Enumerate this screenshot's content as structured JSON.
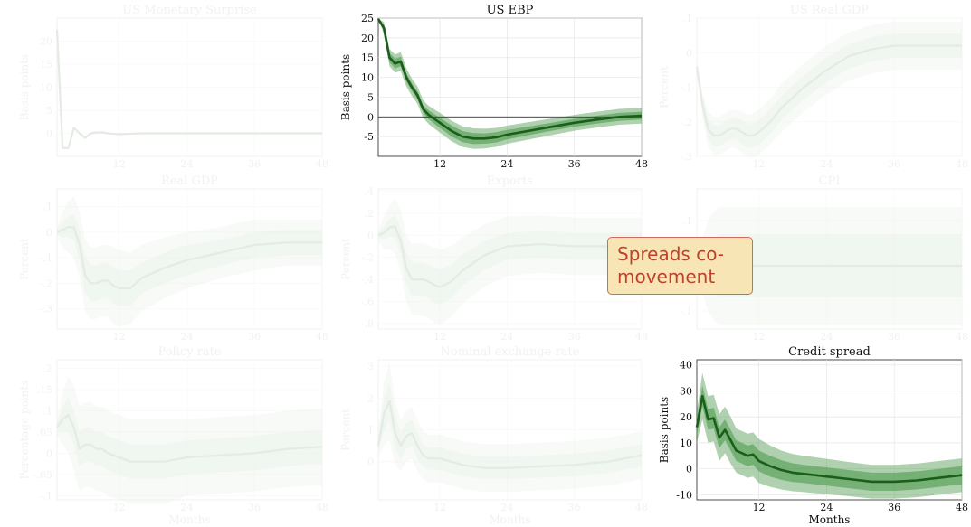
{
  "x_axis": {
    "ticks": [
      12,
      24,
      36,
      48
    ],
    "label": "Months"
  },
  "highlight_color": "#1a5e1a",
  "faded_color": "#d8e6d5",
  "band_color": "#4f9a4f",
  "annotation": {
    "text": "Spreads co-movement"
  },
  "chart_data": [
    {
      "type": "line",
      "title": "US Monetary Surprise",
      "ylabel": "Basis points",
      "xlabel": "",
      "highlighted": false,
      "ylim": [
        -5,
        25
      ],
      "yticks": [
        0,
        5,
        10,
        15,
        20
      ],
      "zero_line": false,
      "x": [
        1,
        2,
        3,
        4,
        5,
        6,
        7,
        8,
        9,
        10,
        12,
        16,
        20,
        24,
        30,
        36,
        42,
        48
      ],
      "values": [
        22.5,
        -3.2,
        -3.2,
        1.2,
        0,
        -1,
        0,
        0.2,
        0.2,
        0,
        -0.2,
        0,
        0,
        0,
        0,
        0,
        0,
        0
      ],
      "inner_band": [
        0,
        0,
        0,
        0,
        0,
        0,
        0,
        0,
        0,
        0,
        0,
        0,
        0,
        0,
        0,
        0,
        0,
        0
      ],
      "outer_band": [
        0,
        0,
        0,
        0,
        0,
        0,
        0,
        0,
        0,
        0,
        0,
        0,
        0,
        0,
        0,
        0,
        0,
        0
      ]
    },
    {
      "type": "line",
      "title": "US EBP",
      "ylabel": "Basis points",
      "xlabel": "",
      "highlighted": true,
      "ylim": [
        -10,
        25
      ],
      "yticks": [
        -5,
        0,
        5,
        10,
        15,
        20,
        25
      ],
      "zero_line": true,
      "x": [
        1,
        2,
        3,
        4,
        5,
        6,
        7,
        8,
        9,
        10,
        11,
        12,
        14,
        16,
        18,
        20,
        22,
        24,
        28,
        32,
        36,
        40,
        44,
        48
      ],
      "values": [
        24.8,
        22.5,
        15,
        13.5,
        14,
        10,
        7.5,
        5.5,
        2,
        0.5,
        -0.5,
        -1.5,
        -3.5,
        -5,
        -5.5,
        -5.5,
        -5.2,
        -4.5,
        -3.5,
        -2.5,
        -1.5,
        -0.7,
        0,
        0.3
      ],
      "inner_band": [
        0,
        0.8,
        1.2,
        1.2,
        1.2,
        1.1,
        1,
        1,
        1,
        1.1,
        1.2,
        1.3,
        1.4,
        1.4,
        1.4,
        1.3,
        1.3,
        1.2,
        1.1,
        1,
        1,
        1,
        1,
        1
      ],
      "outer_band": [
        0,
        1.5,
        2.2,
        2.3,
        2.4,
        2.3,
        2.2,
        2.2,
        2.2,
        2.3,
        2.4,
        2.5,
        2.6,
        2.6,
        2.6,
        2.5,
        2.4,
        2.3,
        2.2,
        2.1,
        2,
        2,
        2,
        2
      ]
    },
    {
      "type": "line",
      "title": "US Real GDP",
      "ylabel": "Percent",
      "xlabel": "",
      "highlighted": false,
      "ylim": [
        -0.3,
        0.1
      ],
      "yticks": [
        -0.3,
        -0.2,
        -0.1,
        0,
        0.1
      ],
      "zero_line": false,
      "x": [
        1,
        2,
        3,
        4,
        5,
        6,
        7,
        8,
        9,
        10,
        11,
        12,
        14,
        16,
        20,
        24,
        28,
        32,
        36,
        40,
        44,
        48
      ],
      "values": [
        -0.04,
        -0.15,
        -0.22,
        -0.24,
        -0.24,
        -0.23,
        -0.22,
        -0.22,
        -0.23,
        -0.24,
        -0.24,
        -0.23,
        -0.2,
        -0.16,
        -0.1,
        -0.05,
        -0.01,
        0.01,
        0.02,
        0.02,
        0.02,
        0.02
      ],
      "inner_band": [
        0.005,
        0.02,
        0.03,
        0.03,
        0.03,
        0.03,
        0.03,
        0.03,
        0.035,
        0.035,
        0.035,
        0.035,
        0.035,
        0.035,
        0.035,
        0.035,
        0.035,
        0.035,
        0.035,
        0.035,
        0.035,
        0.035
      ],
      "outer_band": [
        0.01,
        0.035,
        0.05,
        0.055,
        0.055,
        0.055,
        0.055,
        0.055,
        0.06,
        0.06,
        0.065,
        0.065,
        0.065,
        0.07,
        0.07,
        0.07,
        0.07,
        0.07,
        0.07,
        0.07,
        0.07,
        0.07
      ]
    },
    {
      "type": "line",
      "title": "Real GDP",
      "ylabel": "Percent",
      "xlabel": "",
      "highlighted": false,
      "ylim": [
        -0.38,
        0.17
      ],
      "yticks": [
        -0.3,
        -0.2,
        -0.1,
        0,
        0.1
      ],
      "zero_line": false,
      "x": [
        1,
        2,
        3,
        4,
        5,
        6,
        7,
        8,
        9,
        10,
        11,
        12,
        14,
        16,
        20,
        24,
        30,
        36,
        42,
        48
      ],
      "values": [
        0,
        0.01,
        0.02,
        0.02,
        -0.05,
        -0.17,
        -0.2,
        -0.2,
        -0.19,
        -0.19,
        -0.21,
        -0.22,
        -0.22,
        -0.18,
        -0.14,
        -0.11,
        -0.08,
        -0.05,
        -0.04,
        -0.04
      ],
      "inner_band": [
        0.01,
        0.03,
        0.04,
        0.05,
        0.06,
        0.07,
        0.07,
        0.07,
        0.07,
        0.07,
        0.07,
        0.07,
        0.07,
        0.06,
        0.06,
        0.06,
        0.05,
        0.05,
        0.05,
        0.05
      ],
      "outer_band": [
        0.02,
        0.07,
        0.1,
        0.12,
        0.13,
        0.14,
        0.14,
        0.14,
        0.14,
        0.14,
        0.15,
        0.15,
        0.14,
        0.13,
        0.12,
        0.11,
        0.1,
        0.1,
        0.09,
        0.09
      ]
    },
    {
      "type": "line",
      "title": "Exports",
      "ylabel": "Percent",
      "xlabel": "",
      "highlighted": false,
      "ylim": [
        -0.85,
        0.42
      ],
      "yticks": [
        -0.8,
        -0.6,
        -0.4,
        -0.2,
        0,
        0.2,
        0.4
      ],
      "zero_line": false,
      "x": [
        1,
        2,
        3,
        4,
        5,
        6,
        7,
        8,
        9,
        10,
        11,
        12,
        14,
        16,
        20,
        24,
        30,
        36,
        42,
        48
      ],
      "values": [
        0,
        0.02,
        0.07,
        0.08,
        -0.05,
        -0.3,
        -0.4,
        -0.4,
        -0.4,
        -0.42,
        -0.45,
        -0.47,
        -0.42,
        -0.32,
        -0.18,
        -0.1,
        -0.08,
        -0.1,
        -0.1,
        -0.1
      ],
      "inner_band": [
        0.02,
        0.06,
        0.08,
        0.1,
        0.12,
        0.14,
        0.15,
        0.15,
        0.15,
        0.15,
        0.16,
        0.16,
        0.15,
        0.14,
        0.13,
        0.12,
        0.12,
        0.12,
        0.12,
        0.12
      ],
      "outer_band": [
        0.05,
        0.15,
        0.2,
        0.25,
        0.28,
        0.3,
        0.32,
        0.33,
        0.33,
        0.33,
        0.34,
        0.34,
        0.32,
        0.3,
        0.28,
        0.27,
        0.26,
        0.26,
        0.26,
        0.26
      ]
    },
    {
      "type": "line",
      "title": "CPI",
      "ylabel": "",
      "xlabel": "",
      "highlighted": false,
      "ylim": [
        -0.14,
        0.17
      ],
      "yticks": [
        -0.1,
        0,
        0.1
      ],
      "zero_line": false,
      "x": [
        1,
        2,
        3,
        4,
        5,
        6,
        8,
        10,
        12,
        16,
        20,
        24,
        30,
        36,
        42,
        48
      ],
      "values": [
        0,
        0,
        0,
        0,
        0,
        0,
        0,
        0,
        0,
        0,
        0,
        0,
        0,
        0,
        0,
        0
      ],
      "inner_band": [
        0.01,
        0.03,
        0.05,
        0.06,
        0.07,
        0.07,
        0.07,
        0.07,
        0.07,
        0.07,
        0.07,
        0.07,
        0.07,
        0.07,
        0.07,
        0.07
      ],
      "outer_band": [
        0.02,
        0.06,
        0.1,
        0.12,
        0.13,
        0.13,
        0.13,
        0.13,
        0.13,
        0.13,
        0.13,
        0.13,
        0.13,
        0.13,
        0.13,
        0.13
      ]
    },
    {
      "type": "line",
      "title": "Policy rate",
      "ylabel": "Percentage points",
      "xlabel": "Months",
      "highlighted": false,
      "ylim": [
        -0.11,
        0.22
      ],
      "yticks": [
        -0.1,
        -0.05,
        0,
        0.05,
        0.1,
        0.15,
        0.2
      ],
      "zero_line": false,
      "x": [
        1,
        2,
        3,
        4,
        5,
        6,
        7,
        8,
        9,
        10,
        12,
        14,
        16,
        20,
        24,
        30,
        36,
        42,
        48
      ],
      "values": [
        0.06,
        0.08,
        0.09,
        0.06,
        0.01,
        0.02,
        0.02,
        0.01,
        0.01,
        0,
        -0.01,
        -0.02,
        -0.02,
        -0.02,
        -0.01,
        -0.005,
        0,
        0.01,
        0.015
      ],
      "inner_band": [
        0.01,
        0.03,
        0.04,
        0.04,
        0.04,
        0.04,
        0.04,
        0.04,
        0.04,
        0.04,
        0.04,
        0.04,
        0.04,
        0.04,
        0.04,
        0.04,
        0.04,
        0.04,
        0.04
      ],
      "outer_band": [
        0.02,
        0.06,
        0.09,
        0.1,
        0.1,
        0.1,
        0.1,
        0.1,
        0.1,
        0.1,
        0.1,
        0.1,
        0.1,
        0.1,
        0.09,
        0.09,
        0.09,
        0.09,
        0.09
      ]
    },
    {
      "type": "line",
      "title": "Nominal exchange rate",
      "ylabel": "Percent",
      "xlabel": "Months",
      "highlighted": false,
      "ylim": [
        -1.2,
        3.2
      ],
      "yticks": [
        0,
        1,
        2,
        3
      ],
      "zero_line": false,
      "x": [
        1,
        2,
        3,
        4,
        5,
        6,
        7,
        8,
        9,
        10,
        12,
        14,
        16,
        20,
        24,
        30,
        36,
        42,
        48
      ],
      "values": [
        0.5,
        1.5,
        1.9,
        0.9,
        0.5,
        0.8,
        0.9,
        0.5,
        0.2,
        0.1,
        0.1,
        0,
        -0.1,
        -0.2,
        -0.2,
        -0.15,
        -0.1,
        0,
        0.2
      ],
      "inner_band": [
        0.2,
        0.5,
        0.6,
        0.5,
        0.4,
        0.4,
        0.4,
        0.4,
        0.35,
        0.35,
        0.35,
        0.35,
        0.35,
        0.35,
        0.35,
        0.35,
        0.35,
        0.35,
        0.35
      ],
      "outer_band": [
        0.4,
        1,
        1.2,
        1,
        0.8,
        0.8,
        0.8,
        0.8,
        0.75,
        0.75,
        0.75,
        0.75,
        0.75,
        0.75,
        0.75,
        0.75,
        0.75,
        0.75,
        0.75
      ]
    },
    {
      "type": "line",
      "title": "Credit spread",
      "ylabel": "Basis points",
      "xlabel": "Months",
      "highlighted": true,
      "ylim": [
        -12,
        42
      ],
      "yticks": [
        -10,
        0,
        10,
        20,
        30,
        40
      ],
      "zero_line": false,
      "x": [
        1,
        2,
        3,
        4,
        5,
        6,
        7,
        8,
        9,
        10,
        11,
        12,
        14,
        16,
        18,
        20,
        24,
        28,
        32,
        36,
        40,
        44,
        48
      ],
      "values": [
        16,
        28,
        19,
        19.5,
        12,
        15,
        11,
        7,
        6,
        5,
        5.5,
        3,
        1,
        -0.5,
        -1.5,
        -2,
        -3,
        -4,
        -5,
        -5,
        -4.5,
        -3.5,
        -2.5
      ],
      "inner_band": [
        3,
        4,
        4,
        4,
        4,
        4,
        4,
        4,
        4,
        4,
        4,
        4,
        4,
        3.8,
        3.6,
        3.5,
        3.5,
        3.5,
        3.5,
        3.5,
        3.5,
        3.5,
        3.5
      ],
      "outer_band": [
        6,
        9,
        9,
        9,
        9,
        9,
        9,
        8.5,
        8.5,
        8.5,
        8.5,
        8.5,
        8,
        7.5,
        7.2,
        7,
        6.8,
        6.6,
        6.5,
        6.5,
        6.5,
        6.5,
        6.5
      ]
    }
  ]
}
